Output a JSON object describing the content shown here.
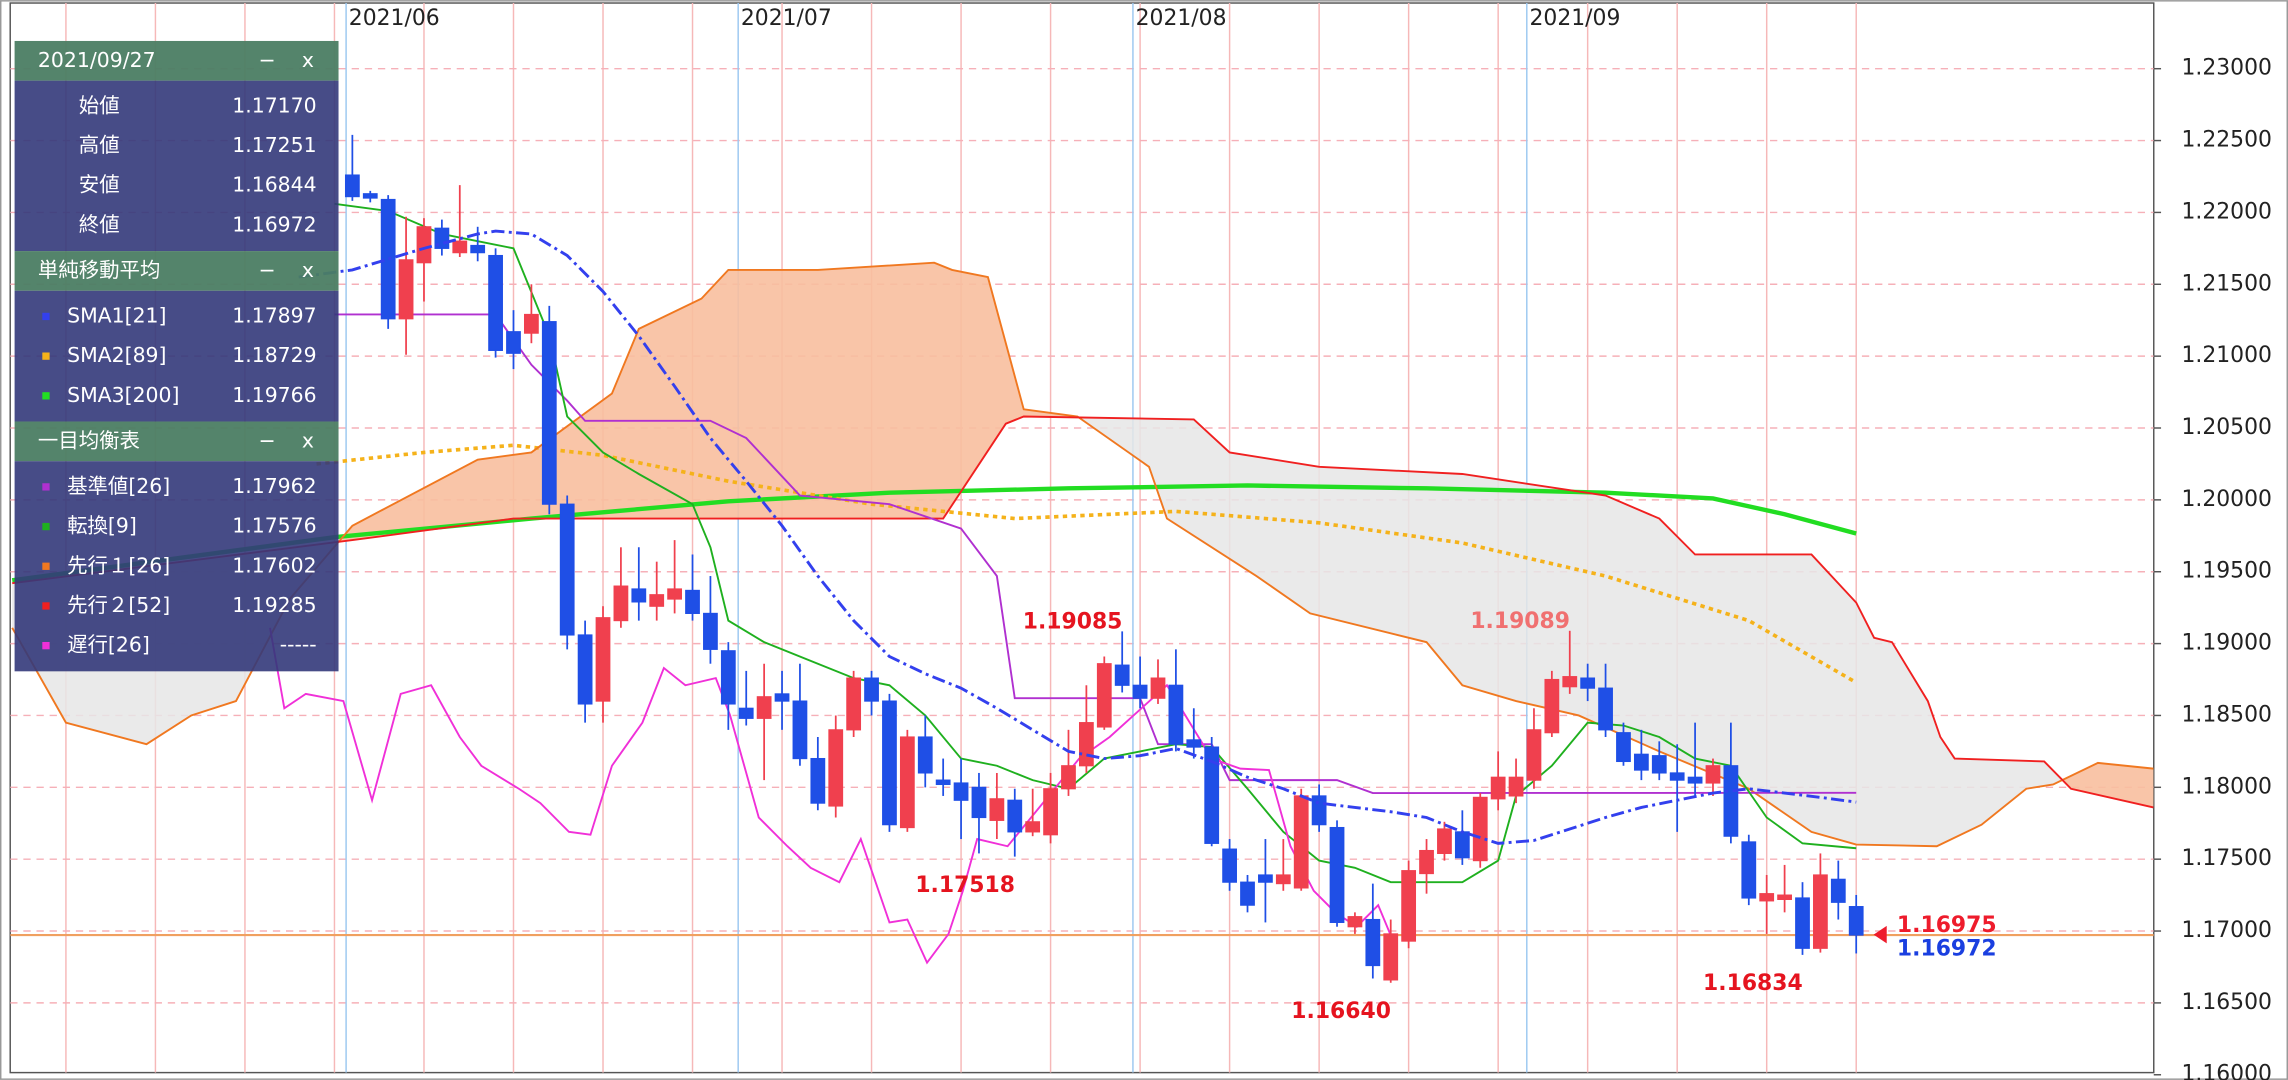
{
  "chart_data": {
    "type": "candlestick",
    "xlim": [
      -19.03,
      100.62
    ],
    "xticks": [
      {
        "value": -0.35,
        "label": "2021/06"
      },
      {
        "value": 21.55,
        "label": "2021/07"
      },
      {
        "value": 43.6,
        "label": "2021/08"
      },
      {
        "value": 65.6,
        "label": "2021/09"
      }
    ],
    "ylim": [
      1.16015,
      1.23457
    ],
    "yticks": [
      {
        "value": 1.16,
        "label": "1.16000"
      },
      {
        "value": 1.165,
        "label": "1.16500"
      },
      {
        "value": 1.17,
        "label": "1.17000"
      },
      {
        "value": 1.175,
        "label": "1.17500"
      },
      {
        "value": 1.18,
        "label": "1.18000"
      },
      {
        "value": 1.185,
        "label": "1.18500"
      },
      {
        "value": 1.19,
        "label": "1.19000"
      },
      {
        "value": 1.195,
        "label": "1.19500"
      },
      {
        "value": 1.2,
        "label": "1.20000"
      },
      {
        "value": 1.205,
        "label": "1.20500"
      },
      {
        "value": 1.21,
        "label": "1.21000"
      },
      {
        "value": 1.215,
        "label": "1.21500"
      },
      {
        "value": 1.22,
        "label": "1.22000"
      },
      {
        "value": 1.225,
        "label": "1.22500"
      },
      {
        "value": 1.23,
        "label": "1.23000"
      }
    ],
    "grid": true,
    "candles": {
      "up_color": "#f0404e",
      "down_color": "#1f4fe6",
      "open": [
        1.2226,
        1.2213,
        1.2209,
        1.2126,
        1.2165,
        1.2189,
        1.2172,
        1.2177,
        1.217,
        1.2117,
        1.2116,
        1.2124,
        1.1997,
        1.1906,
        1.186,
        1.1916,
        1.1938,
        1.1926,
        1.1931,
        1.1937,
        1.1921,
        1.1895,
        1.1855,
        1.1848,
        1.1865,
        1.186,
        1.182,
        1.1787,
        1.184,
        1.1876,
        1.186,
        1.1772,
        1.1835,
        1.1805,
        1.1803,
        1.18,
        1.1777,
        1.1791,
        1.1769,
        1.1767,
        1.1799,
        1.1815,
        1.1842,
        1.1885,
        1.1871,
        1.1862,
        1.1871,
        1.1833,
        1.1828,
        1.1757,
        1.1734,
        1.1739,
        1.1733,
        1.173,
        1.1794,
        1.1772,
        1.1703,
        1.1708,
        1.1666,
        1.1693,
        1.174,
        1.1754,
        1.1769,
        1.1749,
        1.1792,
        1.1794,
        1.1805,
        1.1838,
        1.187,
        1.1876,
        1.1869,
        1.1838,
        1.1823,
        1.1822,
        1.181,
        1.1807,
        1.1803,
        1.1815,
        1.1762,
        1.1721,
        1.1722,
        1.1723,
        1.1688,
        1.1736,
        1.1717
      ],
      "high": [
        1.2254,
        1.2215,
        1.2212,
        1.2197,
        1.2196,
        1.2195,
        1.2219,
        1.219,
        1.2175,
        1.2132,
        1.215,
        1.2135,
        1.2003,
        1.1916,
        1.1926,
        1.1967,
        1.1967,
        1.1957,
        1.1972,
        1.1962,
        1.1947,
        1.1901,
        1.1881,
        1.1886,
        1.1881,
        1.1886,
        1.1835,
        1.185,
        1.1881,
        1.1881,
        1.1865,
        1.184,
        1.185,
        1.182,
        1.182,
        1.181,
        1.181,
        1.1799,
        1.1799,
        1.181,
        1.184,
        1.1871,
        1.1891,
        1.19085,
        1.1891,
        1.1889,
        1.1896,
        1.1855,
        1.1835,
        1.1764,
        1.1739,
        1.1764,
        1.1764,
        1.1799,
        1.1802,
        1.1777,
        1.1713,
        1.1733,
        1.1708,
        1.1749,
        1.1764,
        1.1776,
        1.1784,
        1.1796,
        1.1825,
        1.182,
        1.1855,
        1.1881,
        1.19089,
        1.1886,
        1.1886,
        1.1845,
        1.184,
        1.1832,
        1.183,
        1.1845,
        1.182,
        1.1845,
        1.1767,
        1.1739,
        1.1746,
        1.1734,
        1.1754,
        1.1749,
        1.17251
      ],
      "low": [
        1.2208,
        1.2207,
        1.2119,
        1.2101,
        1.2138,
        1.217,
        1.2169,
        1.2166,
        1.2099,
        1.2091,
        1.2109,
        1.199,
        1.1896,
        1.1845,
        1.1845,
        1.1911,
        1.1916,
        1.1916,
        1.1921,
        1.1916,
        1.1886,
        1.184,
        1.1843,
        1.1805,
        1.184,
        1.1815,
        1.1784,
        1.1779,
        1.1835,
        1.185,
        1.1769,
        1.1769,
        1.18,
        1.1794,
        1.1764,
        1.1754,
        1.1764,
        1.17518,
        1.1766,
        1.1761,
        1.1794,
        1.181,
        1.184,
        1.1866,
        1.1855,
        1.1858,
        1.1825,
        1.182,
        1.1759,
        1.1728,
        1.1713,
        1.1706,
        1.1728,
        1.1728,
        1.1769,
        1.1703,
        1.1698,
        1.1667,
        1.1664,
        1.1688,
        1.1726,
        1.1749,
        1.1746,
        1.1744,
        1.1784,
        1.1789,
        1.1799,
        1.1835,
        1.1865,
        1.186,
        1.1835,
        1.1815,
        1.1805,
        1.1805,
        1.1769,
        1.1794,
        1.1794,
        1.1761,
        1.1718,
        1.1698,
        1.1713,
        1.16834,
        1.1685,
        1.1708,
        1.16844
      ],
      "close": [
        1.2211,
        1.221,
        1.2126,
        1.2167,
        1.219,
        1.2175,
        1.218,
        1.2172,
        1.2104,
        1.2102,
        1.2129,
        1.1997,
        1.1906,
        1.1858,
        1.1918,
        1.194,
        1.1929,
        1.1934,
        1.1938,
        1.1921,
        1.1896,
        1.1858,
        1.1848,
        1.1863,
        1.186,
        1.182,
        1.1789,
        1.184,
        1.1876,
        1.186,
        1.1774,
        1.1835,
        1.181,
        1.1802,
        1.1791,
        1.1779,
        1.1792,
        1.1769,
        1.1776,
        1.1799,
        1.1815,
        1.1845,
        1.1886,
        1.1871,
        1.1862,
        1.1876,
        1.183,
        1.1828,
        1.1761,
        1.1734,
        1.1718,
        1.1734,
        1.1739,
        1.1794,
        1.1774,
        1.1706,
        1.171,
        1.1676,
        1.1698,
        1.1742,
        1.1756,
        1.1771,
        1.1751,
        1.1793,
        1.1807,
        1.1807,
        1.184,
        1.1875,
        1.1877,
        1.1869,
        1.184,
        1.1818,
        1.1812,
        1.181,
        1.1805,
        1.1803,
        1.1815,
        1.1766,
        1.1723,
        1.1726,
        1.1725,
        1.1688,
        1.1739,
        1.172,
        1.16972
      ]
    },
    "lines": [
      {
        "name": "SMA1[21]",
        "color": "#3340ee",
        "dash": "dashdot",
        "width": 2,
        "last": "1.17897",
        "x": [
          -3,
          0,
          4,
          7,
          8,
          10,
          12,
          14,
          16,
          18,
          20,
          22,
          24,
          26,
          28,
          30,
          32,
          34,
          36,
          38,
          40,
          42,
          44,
          46,
          48,
          50,
          52,
          54,
          56,
          58,
          60,
          62,
          64,
          66,
          68,
          70,
          72,
          74,
          76,
          78,
          80,
          82,
          84
        ],
        "values": [
          1.2155,
          1.216,
          1.2175,
          1.2185,
          1.2187,
          1.2185,
          1.217,
          1.2145,
          1.2114,
          1.2079,
          1.2043,
          1.2013,
          1.1982,
          1.1947,
          1.1916,
          1.1891,
          1.1879,
          1.1869,
          1.1855,
          1.184,
          1.1825,
          1.182,
          1.1822,
          1.1827,
          1.1818,
          1.1807,
          1.1799,
          1.1789,
          1.1786,
          1.1783,
          1.1779,
          1.1769,
          1.1761,
          1.1763,
          1.1771,
          1.1779,
          1.1786,
          1.1791,
          1.1796,
          1.1799,
          1.1796,
          1.1793,
          1.17897
        ]
      },
      {
        "name": "SMA2[89]",
        "color": "#f5b21a",
        "dash": "dot",
        "width": 2.5,
        "last": "1.18729",
        "x": [
          -2,
          4,
          9,
          14,
          21,
          29,
          37,
          46,
          54,
          62,
          70,
          78,
          84
        ],
        "values": [
          1.2025,
          1.2033,
          1.2038,
          1.2031,
          1.2013,
          1.1997,
          1.1987,
          1.1992,
          1.1984,
          1.197,
          1.1947,
          1.1916,
          1.18729
        ]
      },
      {
        "name": "SMA3[200]",
        "color": "#22dd22",
        "dash": "solid",
        "width": 3,
        "last": "1.19766",
        "x": [
          -19,
          -1,
          10,
          21,
          30,
          40,
          50,
          60,
          70,
          76,
          80,
          84
        ],
        "values": [
          1.1944,
          1.1974,
          1.1987,
          1.1999,
          1.2005,
          1.2008,
          1.201,
          1.2008,
          1.2005,
          1.2001,
          1.199,
          1.19766
        ]
      },
      {
        "name": "基準値[26]",
        "color": "#b030d0",
        "dash": "solid",
        "width": 1.3,
        "last": "1.17962",
        "x": [
          -1,
          8,
          10,
          12,
          13,
          20,
          22,
          25,
          30,
          34,
          36,
          37,
          44,
          45,
          48,
          49,
          55,
          57,
          84
        ],
        "values": [
          1.2129,
          1.2129,
          1.2094,
          1.2069,
          1.2055,
          1.2055,
          1.2043,
          1.2003,
          1.1997,
          1.198,
          1.1947,
          1.1862,
          1.1862,
          1.183,
          1.183,
          1.1805,
          1.1805,
          1.1796,
          1.17962
        ]
      },
      {
        "name": "転換[9]",
        "color": "#1fb01f",
        "dash": "solid",
        "width": 1.3,
        "last": "1.17576",
        "x": [
          -1,
          2,
          5,
          7,
          9,
          11,
          12,
          14,
          16,
          19,
          20,
          21,
          23,
          26,
          28,
          30,
          32,
          34,
          36,
          38,
          40,
          42,
          44,
          46,
          48,
          50,
          52,
          54,
          56,
          58,
          60,
          62,
          64,
          65,
          67,
          69,
          71,
          73,
          75,
          77,
          79,
          81,
          84
        ],
        "values": [
          1.2206,
          1.2201,
          1.2185,
          1.218,
          1.2175,
          1.2114,
          1.2058,
          1.2033,
          1.2018,
          1.1997,
          1.1967,
          1.1916,
          1.1901,
          1.1886,
          1.1876,
          1.1871,
          1.185,
          1.182,
          1.1815,
          1.1805,
          1.1799,
          1.182,
          1.1825,
          1.183,
          1.1828,
          1.1799,
          1.1769,
          1.1749,
          1.1744,
          1.1734,
          1.1734,
          1.1734,
          1.1749,
          1.1794,
          1.1815,
          1.1845,
          1.1843,
          1.1835,
          1.182,
          1.1815,
          1.1779,
          1.1761,
          1.17576
        ]
      },
      {
        "name": "先行１[26]",
        "color": "#f07820",
        "dash": "solid",
        "width": 1.3,
        "last": "1.17602",
        "x": [
          -19,
          -16,
          -11.5,
          -9,
          -6.5,
          -3.5,
          0,
          7,
          10,
          14.5,
          16,
          19.5,
          21,
          26,
          32.5,
          33.5,
          35.5,
          37.5,
          40.5,
          44.5,
          45.5,
          50.5,
          53.5,
          60,
          62,
          65,
          68.5,
          73,
          78,
          81.5,
          84,
          88.5,
          91,
          93.5,
          95,
          97.5,
          100.6
        ],
        "values": [
          1.1911,
          1.1845,
          1.183,
          1.185,
          1.186,
          1.1931,
          1.1982,
          1.2028,
          1.2033,
          1.2074,
          1.2119,
          1.214,
          1.216,
          1.216,
          1.2165,
          1.216,
          1.2155,
          1.2063,
          1.2058,
          1.2023,
          1.1987,
          1.1947,
          1.1921,
          1.1901,
          1.1871,
          1.186,
          1.185,
          1.1825,
          1.1799,
          1.1769,
          1.17602,
          1.1759,
          1.1774,
          1.1799,
          1.1802,
          1.1817,
          1.1813
        ]
      },
      {
        "name": "先行２[52]",
        "color": "#f02020",
        "dash": "solid",
        "width": 1.3,
        "last": "1.19285",
        "x": [
          -19,
          0,
          9,
          33,
          36.5,
          37.5,
          47,
          49,
          54,
          62,
          70,
          73,
          75,
          81.5,
          84,
          85,
          86,
          88,
          88.7,
          89.5,
          94.5,
          96,
          100.6
        ],
        "values": [
          1.1942,
          1.1972,
          1.1987,
          1.1987,
          1.2053,
          1.2058,
          1.2056,
          1.2033,
          1.2023,
          1.2018,
          1.2003,
          1.1987,
          1.1962,
          1.1962,
          1.19285,
          1.1904,
          1.1901,
          1.186,
          1.1835,
          1.182,
          1.1818,
          1.1799,
          1.1786
        ]
      },
      {
        "name": "遅行[26]",
        "color": "#f030d8",
        "dash": "solid",
        "width": 1.3,
        "last": "-----",
        "x": [
          -4.6,
          -3.8,
          -2.6,
          -0.5,
          1.1,
          2.7,
          4.4,
          6,
          7.2,
          9.3,
          10.5,
          12.1,
          13.3,
          14.5,
          16.2,
          17.4,
          18.6,
          20.3,
          21.1,
          22.7,
          24.3,
          25.6,
          27.2,
          28.4,
          30,
          31,
          32.1,
          33.3,
          34.1,
          34.9,
          36.6,
          40.6,
          42.3,
          45.5,
          48,
          49.6,
          51.2,
          52.4,
          53.7,
          54.9,
          56.1,
          57.3,
          58
        ],
        "values": [
          1.1911,
          1.1855,
          1.1865,
          1.186,
          1.1791,
          1.1865,
          1.1871,
          1.1835,
          1.1815,
          1.1799,
          1.1789,
          1.1769,
          1.1767,
          1.1815,
          1.1845,
          1.1883,
          1.1871,
          1.1876,
          1.185,
          1.1779,
          1.1759,
          1.1744,
          1.1734,
          1.1764,
          1.1706,
          1.1708,
          1.1678,
          1.1698,
          1.1728,
          1.1764,
          1.1759,
          1.182,
          1.1835,
          1.1871,
          1.182,
          1.1813,
          1.1812,
          1.1759,
          1.1728,
          1.1713,
          1.1703,
          1.1718,
          1.1697
        ]
      }
    ],
    "cloud": {
      "up_fill": "#f8bf9e",
      "down_fill": "#e6e6e6"
    },
    "price_line": {
      "value": 1.16972,
      "color": "#f0a060"
    },
    "price_tags": [
      {
        "value": 1.16975,
        "color": "#ee1c2c"
      },
      {
        "value": 1.16972,
        "color": "#1a3fe0"
      }
    ],
    "annotations": [
      {
        "x": 43,
        "value": 1.19085,
        "color": "#e5141f"
      },
      {
        "x": 37,
        "value": 1.17518,
        "color": "#e5141f"
      },
      {
        "x": 58,
        "value": 1.1664,
        "label": "1.16640",
        "color": "#e5141f"
      },
      {
        "x": 68,
        "value": 1.19089,
        "color": "#f07070"
      },
      {
        "x": 81,
        "value": 1.16834,
        "color": "#e5141f"
      }
    ],
    "panel": {
      "date": "2021/09/27",
      "minimize": "−",
      "close": "x",
      "ohlc": [
        {
          "label": "始値",
          "value": "1.17170"
        },
        {
          "label": "高値",
          "value": "1.17251"
        },
        {
          "label": "安値",
          "value": "1.16844"
        },
        {
          "label": "終値",
          "value": "1.16972"
        }
      ],
      "sma_title": "単純移動平均",
      "ichimoku_title": "一目均衡表"
    }
  }
}
